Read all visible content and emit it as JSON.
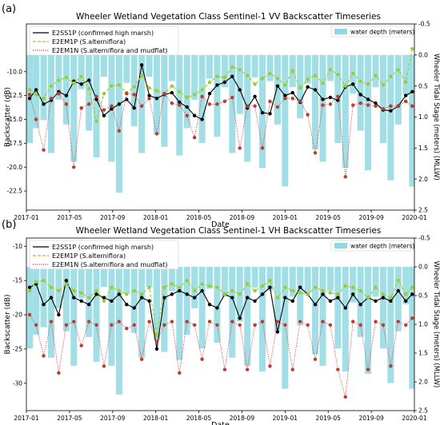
{
  "chart_data": [
    {
      "type": "line",
      "panel_label": "(a)",
      "title": "Wheeler Wetland Vegetation Class Sentinel-1 VV Backscatter Timeseries",
      "xlabel": "Date",
      "ylabel": "Backscatter (dB)",
      "y2label": "Wheeler Tidal Stage (meters) (MLLW)",
      "x_ticks": [
        "2017-01",
        "2017-05",
        "2017-09",
        "2018-01",
        "2018-05",
        "2018-09",
        "2019-01",
        "2019-05",
        "2019-09",
        "2020-01"
      ],
      "y_ticks": [
        "-10.0",
        "-12.5",
        "-15.0",
        "-17.5",
        "-20.0",
        "-22.5"
      ],
      "y2_ticks": [
        "-0.5",
        "0.0",
        "0.5",
        "1.0",
        "1.5",
        "2.0",
        "2.5"
      ],
      "ylim": [
        -24.5,
        -5.0
      ],
      "y2lim": [
        2.5,
        -0.5
      ],
      "x_range_months": [
        0,
        36
      ],
      "legend": [
        {
          "label": "E2SS1P (confirmed high marsh)",
          "style": "solid",
          "color": "#000000"
        },
        {
          "label": "E2EM1P (S.alterniflora)",
          "style": "dashed",
          "color": "#9acd32"
        },
        {
          "label": "E2EM1N (S.alterniflora and mudflat)",
          "style": "dotted",
          "color": "#d62728"
        }
      ],
      "bar_legend": "water depth (meters)",
      "x": [
        0.3,
        0.9,
        1.6,
        2.3,
        3.0,
        3.7,
        4.4,
        5.1,
        5.8,
        6.5,
        7.2,
        7.9,
        8.6,
        9.3,
        10.0,
        10.7,
        11.4,
        12.1,
        12.8,
        13.5,
        14.2,
        14.9,
        15.6,
        16.3,
        17.0,
        17.7,
        18.4,
        19.1,
        19.8,
        20.5,
        21.2,
        21.9,
        22.6,
        23.3,
        24.0,
        24.7,
        25.4,
        26.1,
        26.8,
        27.5,
        28.2,
        28.9,
        29.6,
        30.3,
        31.0,
        31.7,
        32.4,
        33.1,
        33.8,
        34.5,
        35.2,
        35.8
      ],
      "series": [
        {
          "name": "E2SS1P (confirmed high marsh)",
          "values": [
            -12.8,
            -11.9,
            -13.4,
            -13.0,
            -12.1,
            -12.5,
            -11.0,
            -11.3,
            -10.9,
            -12.9,
            -14.6,
            -13.9,
            -13.4,
            -12.9,
            -13.8,
            -9.3,
            -12.5,
            -12.8,
            -12.4,
            -12.2,
            -13.2,
            -13.7,
            -14.6,
            -15.0,
            -12.3,
            -11.4,
            -11.1,
            -10.5,
            -11.9,
            -13.8,
            -12.6,
            -14.3,
            -14.4,
            -11.5,
            -12.5,
            -12.2,
            -13.2,
            -11.6,
            -11.9,
            -12.9,
            -12.7,
            -13.0,
            -11.6,
            -11.3,
            -12.4,
            -12.9,
            -13.3,
            -14.0,
            -14.1,
            -13.6,
            -12.5,
            -12.1
          ]
        },
        {
          "name": "E2EM1P (S.alterniflora)",
          "values": [
            -11.9,
            -12.4,
            -12.8,
            -11.5,
            -10.9,
            -10.6,
            -11.2,
            -10.5,
            -11.8,
            -15.2,
            -12.3,
            -11.5,
            -11.4,
            -12.2,
            -11.6,
            -10.4,
            -11.7,
            -12.0,
            -12.3,
            -11.5,
            -12.1,
            -12.7,
            -12.4,
            -11.9,
            -11.1,
            -10.5,
            -10.6,
            -9.5,
            -9.8,
            -10.4,
            -11.3,
            -10.7,
            -10.2,
            -10.7,
            -11.4,
            -9.9,
            -11.7,
            -10.8,
            -10.4,
            -11.2,
            -9.8,
            -10.3,
            -11.5,
            -10.2,
            -11.0,
            -11.3,
            -10.4,
            -11.4,
            -10.5,
            -9.8,
            -11.1,
            -7.6
          ]
        },
        {
          "name": "E2EM1N (S.alterniflora and mudflat)",
          "values": [
            -12.4,
            -15.0,
            -18.2,
            -12.8,
            -12.3,
            -13.4,
            -20.0,
            -13.8,
            -13.4,
            -12.6,
            -14.0,
            -13.6,
            -16.2,
            -12.3,
            -12.4,
            -13.6,
            -12.8,
            -16.5,
            -12.3,
            -13.3,
            -13.5,
            -14.6,
            -16.9,
            -12.6,
            -13.4,
            -13.4,
            -13.1,
            -12.7,
            -18.0,
            -13.6,
            -13.6,
            -18.0,
            -13.1,
            -13.7,
            -12.8,
            -12.8,
            -13.1,
            -14.5,
            -18.5,
            -13.5,
            -13.4,
            -12.6,
            -21.0,
            -13.5,
            -13.3,
            -13.5,
            -13.6,
            -13.9,
            -13.6,
            -13.6,
            -13.1,
            -13.6
          ]
        }
      ],
      "water_depth": [
        1.42,
        1.18,
        1.05,
        1.58,
        0.72,
        1.12,
        1.72,
        0.55,
        1.22,
        1.65,
        0.35,
        1.72,
        2.22,
        0.45,
        1.15,
        1.58,
        0.35,
        1.28,
        1.48,
        0.42,
        1.62,
        1.18,
        0.72,
        1.42,
        0.38,
        1.32,
        0.52,
        1.58,
        0.95,
        1.72,
        0.36,
        1.82,
        0.42,
        1.12,
        2.12,
        0.52,
        1.02,
        0.46,
        1.52,
        1.72,
        0.42,
        1.42,
        1.82,
        0.62,
        1.22,
        1.86,
        0.52,
        1.42,
        2.02,
        1.12,
        0.65,
        2.12
      ]
    },
    {
      "type": "line",
      "panel_label": "(b)",
      "title": "Wheeler Wetland Vegetation Class Sentinel-1 VH Backscatter Timeseries",
      "xlabel": "Date",
      "ylabel": "Backscatter (dB)",
      "y2label": "Wheeler Tidal Stage (meters) (MLLW)",
      "x_ticks": [
        "2017-01",
        "2017-05",
        "2017-09",
        "2018-01",
        "2018-05",
        "2018-09",
        "2019-01",
        "2019-05",
        "2019-09",
        "2020-01"
      ],
      "y_ticks": [
        "-10",
        "-15",
        "-20",
        "-25",
        "-30"
      ],
      "y2_ticks": [
        "-0.5",
        "0.0",
        "0.5",
        "1.0",
        "1.5",
        "2.0",
        "2.5"
      ],
      "ylim": [
        -34.0,
        -8.8
      ],
      "y2lim": [
        2.5,
        -0.5
      ],
      "x_range_months": [
        0,
        36
      ],
      "legend": [
        {
          "label": "E2SS1P (confirmed high marsh)",
          "style": "solid",
          "color": "#000000"
        },
        {
          "label": "E2EM1P (S.alterniflora)",
          "style": "dashed",
          "color": "#9acd32"
        },
        {
          "label": "E2EM1N (S.alterniflora and mudflat)",
          "style": "dotted",
          "color": "#d62728"
        }
      ],
      "bar_legend": "water depth (meters)",
      "x": [
        0.3,
        0.9,
        1.6,
        2.3,
        3.0,
        3.7,
        4.4,
        5.1,
        5.8,
        6.5,
        7.2,
        7.9,
        8.6,
        9.3,
        10.0,
        10.7,
        11.4,
        12.1,
        12.8,
        13.5,
        14.2,
        14.9,
        15.6,
        16.3,
        17.0,
        17.7,
        18.4,
        19.1,
        19.8,
        20.5,
        21.2,
        21.9,
        22.6,
        23.3,
        24.0,
        24.7,
        25.4,
        26.1,
        26.8,
        27.5,
        28.2,
        28.9,
        29.6,
        30.3,
        31.0,
        31.7,
        32.4,
        33.1,
        33.8,
        34.5,
        35.2,
        35.8
      ],
      "series": [
        {
          "name": "E2SS1P (confirmed high marsh)",
          "values": [
            -16.0,
            -15.5,
            -18.5,
            -17.5,
            -20.0,
            -15.0,
            -17.5,
            -18.0,
            -18.5,
            -17.0,
            -17.5,
            -18.0,
            -17.0,
            -18.5,
            -19.0,
            -17.5,
            -18.0,
            -25.0,
            -17.5,
            -17.0,
            -16.5,
            -17.0,
            -17.5,
            -16.5,
            -18.5,
            -19.0,
            -17.0,
            -17.5,
            -20.5,
            -17.5,
            -18.0,
            -17.0,
            -16.0,
            -22.5,
            -17.5,
            -18.0,
            -16.0,
            -17.0,
            -18.5,
            -17.0,
            -18.0,
            -17.5,
            -19.0,
            -17.0,
            -18.5,
            -17.5,
            -18.0,
            -17.5,
            -18.0,
            -16.5,
            -18.0,
            -17.0
          ]
        },
        {
          "name": "E2EM1P (S.alterniflora)",
          "values": [
            -16.5,
            -15.2,
            -15.0,
            -16.0,
            -16.5,
            -15.5,
            -16.5,
            -16.8,
            -17.5,
            -16.5,
            -18.0,
            -16.0,
            -16.5,
            -17.0,
            -16.5,
            -17.0,
            -16.0,
            -23.0,
            -16.0,
            -15.5,
            -16.0,
            -15.0,
            -16.5,
            -15.5,
            -15.8,
            -16.0,
            -17.0,
            -16.5,
            -17.0,
            -15.5,
            -16.5,
            -15.8,
            -15.0,
            -17.5,
            -16.0,
            -16.5,
            -16.8,
            -17.0,
            -16.0,
            -16.5,
            -16.8,
            -17.0,
            -15.8,
            -16.0,
            -16.5,
            -17.5,
            -16.0,
            -17.0,
            -17.5,
            -15.0,
            -17.0,
            -16.0
          ]
        },
        {
          "name": "E2EM1N (S.alterniflora and mudflat)",
          "values": [
            -20.0,
            -21.5,
            -26.0,
            -21.0,
            -28.5,
            -21.5,
            -21.0,
            -24.5,
            -21.0,
            -21.5,
            -27.5,
            -21.5,
            -21.0,
            -22.0,
            -21.5,
            -26.5,
            -21.0,
            -24.0,
            -21.5,
            -21.0,
            -28.5,
            -21.0,
            -21.5,
            -26.5,
            -21.0,
            -21.5,
            -28.0,
            -21.0,
            -21.5,
            -28.0,
            -21.5,
            -21.0,
            -27.5,
            -21.0,
            -21.5,
            -28.0,
            -21.0,
            -21.5,
            -26.5,
            -21.0,
            -21.5,
            -28.0,
            -32.0,
            -21.0,
            -21.5,
            -28.0,
            -21.0,
            -21.5,
            -27.5,
            -21.0,
            -21.5,
            -20.5
          ]
        }
      ],
      "water_depth": [
        1.42,
        1.18,
        1.05,
        1.58,
        0.72,
        1.12,
        1.72,
        0.55,
        1.22,
        1.65,
        0.35,
        1.72,
        2.22,
        0.45,
        1.15,
        1.58,
        0.35,
        1.28,
        1.48,
        0.42,
        1.62,
        1.18,
        0.72,
        1.42,
        0.38,
        1.32,
        0.52,
        1.58,
        0.95,
        1.72,
        0.36,
        1.82,
        0.42,
        1.12,
        2.12,
        0.52,
        1.02,
        0.46,
        1.52,
        1.72,
        0.42,
        1.42,
        1.82,
        0.62,
        1.22,
        1.86,
        0.52,
        1.42,
        2.02,
        1.12,
        0.65,
        2.12
      ]
    }
  ]
}
